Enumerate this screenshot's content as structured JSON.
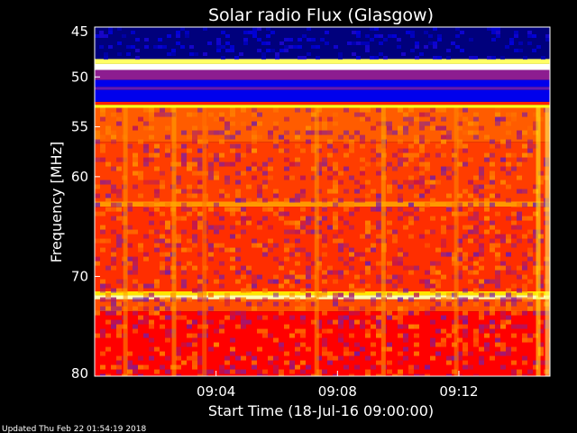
{
  "chart_data": {
    "type": "heatmap",
    "title": "Solar radio Flux (Glasgow)",
    "xlabel": "Start Time (18-Jul-16 09:00:00)",
    "ylabel": "Frequency [MHz]",
    "x_unit": "minutes after 09:00:00",
    "x_range": [
      0,
      15
    ],
    "x_ticks": [
      {
        "value": 4,
        "label": "09:04"
      },
      {
        "value": 8,
        "label": "09:08"
      },
      {
        "value": 12,
        "label": "09:12"
      }
    ],
    "ylim": [
      45,
      80
    ],
    "y_inverted": true,
    "y_ticks": [
      {
        "value": 45,
        "label": "45"
      },
      {
        "value": 50,
        "label": "50"
      },
      {
        "value": 55,
        "label": "55"
      },
      {
        "value": 60,
        "label": "60"
      },
      {
        "value": 70,
        "label": "70"
      },
      {
        "value": 80,
        "label": "80"
      }
    ],
    "colorscale": [
      "#000044",
      "#0000ff",
      "#8020a0",
      "#ff0000",
      "#ff8000",
      "#ffff00",
      "#ffffff"
    ],
    "frequency_bands": [
      {
        "from": 45,
        "to": 48.2,
        "level": 0.05
      },
      {
        "from": 48.2,
        "to": 48.7,
        "level": 0.9
      },
      {
        "from": 48.7,
        "to": 49.3,
        "level": 1.0
      },
      {
        "from": 49.3,
        "to": 50.3,
        "level": 0.35
      },
      {
        "from": 50.3,
        "to": 51.0,
        "level": 0.15
      },
      {
        "from": 51.0,
        "to": 51.3,
        "level": 0.3
      },
      {
        "from": 51.3,
        "to": 52.5,
        "level": 0.15
      },
      {
        "from": 52.5,
        "to": 52.8,
        "level": 0.55
      },
      {
        "from": 52.8,
        "to": 53.1,
        "level": 0.85
      },
      {
        "from": 53.1,
        "to": 56.5,
        "level": 0.62
      },
      {
        "from": 56.5,
        "to": 62.5,
        "level": 0.58
      },
      {
        "from": 62.5,
        "to": 63.0,
        "level": 0.7
      },
      {
        "from": 63.0,
        "to": 71.5,
        "level": 0.56
      },
      {
        "from": 71.5,
        "to": 71.9,
        "level": 0.8
      },
      {
        "from": 71.9,
        "to": 72.3,
        "level": 0.95
      },
      {
        "from": 72.3,
        "to": 73.5,
        "level": 0.6
      },
      {
        "from": 73.5,
        "to": 80,
        "level": 0.5
      }
    ],
    "bright_columns": [
      {
        "x": 1.0,
        "level": 0.7
      },
      {
        "x": 2.6,
        "level": 0.72
      },
      {
        "x": 3.6,
        "level": 0.65
      },
      {
        "x": 7.3,
        "level": 0.7
      },
      {
        "x": 9.5,
        "level": 0.72
      },
      {
        "x": 11.9,
        "level": 0.68
      },
      {
        "x": 14.6,
        "level": 0.85
      },
      {
        "x": 14.9,
        "level": 0.9
      }
    ]
  },
  "footer": {
    "updated": "Updated Thu Feb 22 01:54:19 2018"
  }
}
